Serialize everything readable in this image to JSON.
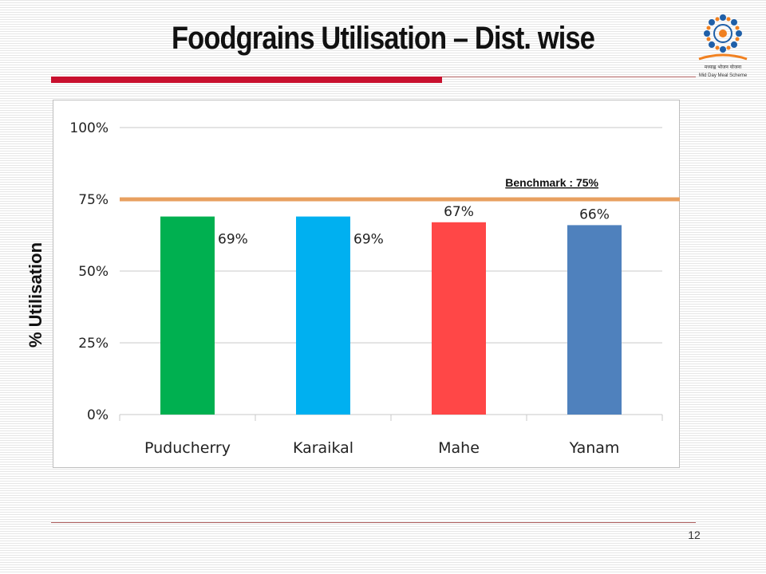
{
  "slide": {
    "title": "Foodgrains Utilisation – Dist. wise",
    "page_number": "12",
    "logo_icon": "mid-day-meal-logo-icon",
    "logo_text_hindi": "मध्याह्न भोजन योजना",
    "logo_text_english": "Mid Day Meal Scheme",
    "accent_color": "#c8102e"
  },
  "chart_data": {
    "type": "bar",
    "categories": [
      "Puducherry",
      "Karaikal",
      "Mahe",
      "Yanam"
    ],
    "values": [
      69,
      69,
      67,
      66
    ],
    "value_labels": [
      "69%",
      "69%",
      "67%",
      "66%"
    ],
    "colors": [
      "#00b050",
      "#00b0f0",
      "#ff4747",
      "#4f81bd"
    ],
    "ylabel": "% Utilisation",
    "ylim": [
      0,
      100
    ],
    "yticks": [
      0,
      25,
      50,
      75,
      100
    ],
    "ytick_labels": [
      "0%",
      "25%",
      "50%",
      "75%",
      "100%"
    ],
    "grid": true,
    "benchmark": {
      "value": 75,
      "label": "Benchmark : 75%",
      "color": "#e8a060"
    }
  }
}
